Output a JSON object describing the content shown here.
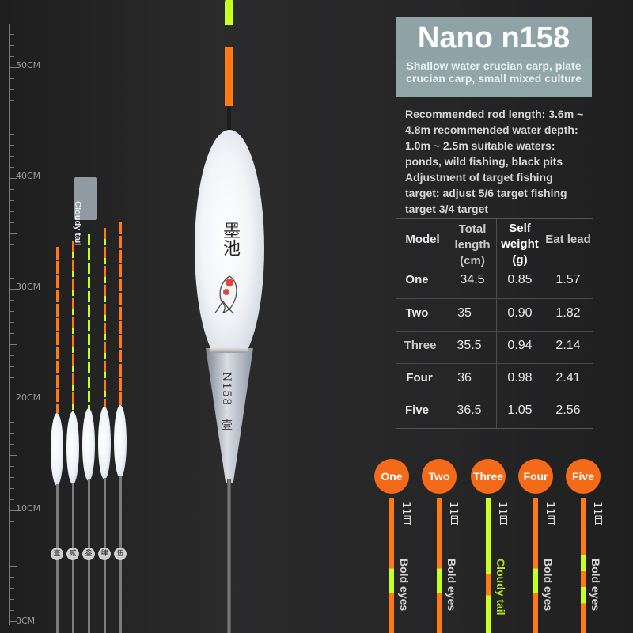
{
  "ruler": {
    "labels": [
      "50CM",
      "40CM",
      "30CM",
      "20CM",
      "10CM",
      "0CM"
    ]
  },
  "small_floats": {
    "badges": [
      "壹",
      "贰",
      "叁",
      "肆",
      "伍"
    ],
    "tag": "Cloudy tail"
  },
  "big_float": {
    "logo_text": "墨池",
    "code_text": "N158 - 壹"
  },
  "product": {
    "title": "Nano n158",
    "subtitle": "Shallow water crucian carp, plate crucian carp, small mixed culture",
    "description": "Recommended rod length: 3.6m ~ 4.8m recommended water depth: 1.0m ~ 2.5m suitable waters: ponds, wild fishing, black pits Adjustment of target fishing target: adjust 5/6 target fishing target 3/4 target"
  },
  "spec_table": {
    "headers": [
      "Model",
      "Total length (cm)",
      "Self weight (g)",
      "Eat lead"
    ],
    "rows": [
      [
        "One",
        "34.5",
        "0.85",
        "1.57"
      ],
      [
        "Two",
        "35",
        "0.90",
        "1.82"
      ],
      [
        "Three",
        "35.5",
        "0.94",
        "2.14"
      ],
      [
        "Four",
        "36",
        "0.98",
        "2.41"
      ],
      [
        "Five",
        "36.5",
        "1.05",
        "2.56"
      ]
    ]
  },
  "rods": [
    {
      "label": "One",
      "size": "11目",
      "note": "Bold eyes"
    },
    {
      "label": "Two",
      "size": "11目",
      "note": "Bold eyes"
    },
    {
      "label": "Three",
      "size": "11目",
      "note": "Cloudy tail"
    },
    {
      "label": "Four",
      "size": "11目",
      "note": "Bold eyes"
    },
    {
      "label": "Five",
      "size": "11目",
      "note": "Bold eyes"
    }
  ],
  "colors": {
    "orange": "#f56a18",
    "green": "#b7e51f",
    "title_bg": "#8fa3a6"
  }
}
